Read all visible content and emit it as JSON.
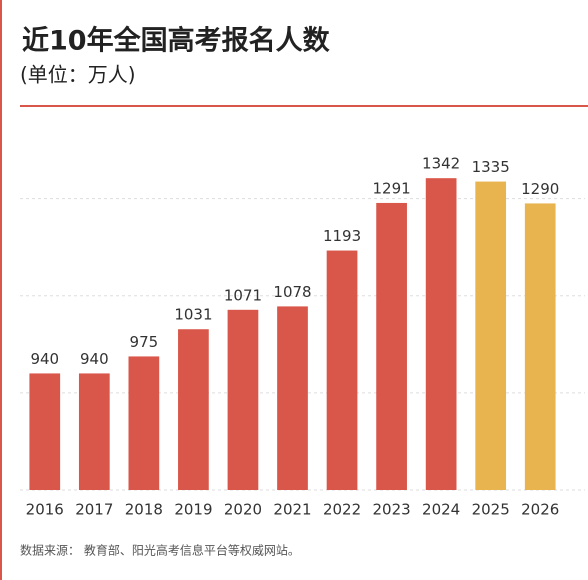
{
  "chart_data": {
    "type": "bar",
    "title": "近10年全国高考报名人数",
    "subtitle": "(单位：万人)",
    "categories": [
      "2016",
      "2017",
      "2018",
      "2019",
      "2020",
      "2021",
      "2022",
      "2023",
      "2024",
      "2025",
      "2026"
    ],
    "values": [
      940,
      940,
      975,
      1031,
      1071,
      1078,
      1193,
      1291,
      1342,
      1335,
      1290
    ],
    "colors": [
      "#d9574a",
      "#d9574a",
      "#d9574a",
      "#d9574a",
      "#d9574a",
      "#d9574a",
      "#d9574a",
      "#d9574a",
      "#d9574a",
      "#e8b450",
      "#e8b450"
    ],
    "ylim": [
      700,
      1400
    ],
    "yticks": [
      700,
      900,
      1100,
      1300
    ],
    "grid": true,
    "source": "数据来源： 教育部、阳光高考信息平台等权威网站。"
  }
}
